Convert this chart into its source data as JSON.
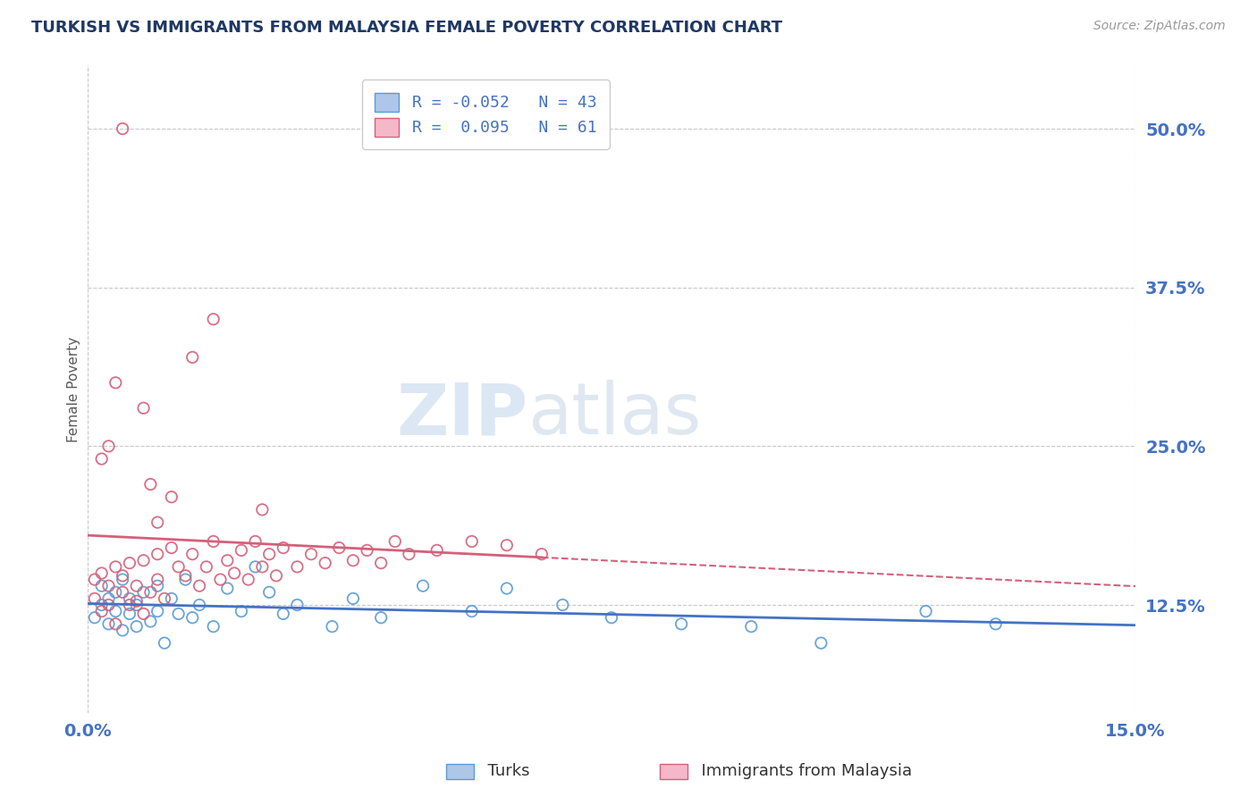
{
  "title": "TURKISH VS IMMIGRANTS FROM MALAYSIA FEMALE POVERTY CORRELATION CHART",
  "source": "Source: ZipAtlas.com",
  "ylabel": "Female Poverty",
  "x_min": 0.0,
  "x_max": 0.15,
  "y_min": 0.04,
  "y_max": 0.55,
  "x_ticks": [
    0.0,
    0.15
  ],
  "x_tick_labels": [
    "0.0%",
    "15.0%"
  ],
  "y_tick_labels": [
    "12.5%",
    "25.0%",
    "37.5%",
    "50.0%"
  ],
  "y_tick_vals": [
    0.125,
    0.25,
    0.375,
    0.5
  ],
  "series1_color": "#aec6e8",
  "series1_edge": "#5b9bd5",
  "series2_color": "#f4b8c8",
  "series2_edge": "#d4607a",
  "line1_color": "#4472c4",
  "line2_color": "#d4607a",
  "legend_label1": "R = -0.052   N = 43",
  "legend_label2": "R =  0.095   N = 61",
  "bottom_label1": "Turks",
  "bottom_label2": "Immigrants from Malaysia",
  "R1": -0.052,
  "N1": 43,
  "R2": 0.095,
  "N2": 61,
  "watermark_zip": "ZIP",
  "watermark_atlas": "atlas",
  "title_color": "#1f3864",
  "axis_label_color": "#595959",
  "tick_color": "#4472c4",
  "grid_color": "#c8c8c8",
  "background_color": "#ffffff",
  "turks_x": [
    0.001,
    0.002,
    0.002,
    0.003,
    0.003,
    0.004,
    0.004,
    0.005,
    0.005,
    0.006,
    0.006,
    0.007,
    0.007,
    0.008,
    0.009,
    0.01,
    0.01,
    0.011,
    0.012,
    0.013,
    0.014,
    0.015,
    0.016,
    0.018,
    0.02,
    0.022,
    0.024,
    0.026,
    0.028,
    0.03,
    0.035,
    0.038,
    0.042,
    0.048,
    0.055,
    0.06,
    0.068,
    0.075,
    0.085,
    0.095,
    0.105,
    0.12,
    0.13
  ],
  "turks_y": [
    0.115,
    0.125,
    0.14,
    0.13,
    0.11,
    0.12,
    0.135,
    0.145,
    0.105,
    0.13,
    0.118,
    0.125,
    0.108,
    0.135,
    0.112,
    0.12,
    0.14,
    0.095,
    0.13,
    0.118,
    0.145,
    0.115,
    0.125,
    0.108,
    0.138,
    0.12,
    0.155,
    0.135,
    0.118,
    0.125,
    0.108,
    0.13,
    0.115,
    0.14,
    0.12,
    0.138,
    0.125,
    0.115,
    0.11,
    0.108,
    0.095,
    0.12,
    0.11
  ],
  "malaysia_x": [
    0.001,
    0.001,
    0.002,
    0.002,
    0.003,
    0.003,
    0.004,
    0.004,
    0.005,
    0.005,
    0.006,
    0.006,
    0.007,
    0.007,
    0.008,
    0.008,
    0.009,
    0.01,
    0.01,
    0.011,
    0.012,
    0.013,
    0.014,
    0.015,
    0.016,
    0.017,
    0.018,
    0.019,
    0.02,
    0.021,
    0.022,
    0.023,
    0.024,
    0.025,
    0.026,
    0.027,
    0.028,
    0.03,
    0.032,
    0.034,
    0.036,
    0.038,
    0.04,
    0.042,
    0.044,
    0.046,
    0.05,
    0.055,
    0.06,
    0.065,
    0.002,
    0.003,
    0.004,
    0.008,
    0.009,
    0.01,
    0.012,
    0.015,
    0.018,
    0.025,
    0.005
  ],
  "malaysia_y": [
    0.145,
    0.13,
    0.15,
    0.12,
    0.14,
    0.125,
    0.155,
    0.11,
    0.135,
    0.148,
    0.125,
    0.158,
    0.14,
    0.128,
    0.16,
    0.118,
    0.135,
    0.165,
    0.145,
    0.13,
    0.17,
    0.155,
    0.148,
    0.165,
    0.14,
    0.155,
    0.175,
    0.145,
    0.16,
    0.15,
    0.168,
    0.145,
    0.175,
    0.155,
    0.165,
    0.148,
    0.17,
    0.155,
    0.165,
    0.158,
    0.17,
    0.16,
    0.168,
    0.158,
    0.175,
    0.165,
    0.168,
    0.175,
    0.172,
    0.165,
    0.24,
    0.25,
    0.3,
    0.28,
    0.22,
    0.19,
    0.21,
    0.32,
    0.35,
    0.2,
    0.5
  ]
}
